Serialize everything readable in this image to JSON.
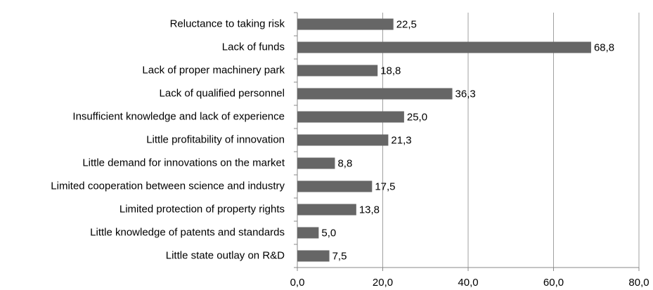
{
  "chart_data": {
    "type": "barh",
    "categories": [
      "Reluctance to taking risk",
      "Lack of funds",
      "Lack of proper machinery park",
      "Lack of qualified personnel",
      "Insufficient knowledge and lack of experience",
      "Little profitability of innovation",
      "Little demand for innovations on the market",
      "Limited cooperation between science and industry",
      "Limited protection of property rights",
      "Little knowledge of patents and standards",
      "Little state outlay on R&D"
    ],
    "values": [
      22.5,
      68.8,
      18.8,
      36.3,
      25.0,
      21.3,
      8.8,
      17.5,
      13.8,
      5.0,
      7.5
    ],
    "value_labels": [
      "22,5",
      "68,8",
      "18,8",
      "36,3",
      "25,0",
      "21,3",
      "8,8",
      "17,5",
      "13,8",
      "5,0",
      "7,5"
    ],
    "color": "#666666",
    "xlim": [
      0,
      80
    ],
    "xticks": [
      {
        "value": 0,
        "label": "0,0"
      },
      {
        "value": 20,
        "label": "20,0"
      },
      {
        "value": 40,
        "label": "40,0"
      },
      {
        "value": 60,
        "label": "60,0"
      },
      {
        "value": 80,
        "label": "80,0"
      }
    ],
    "grid": true
  }
}
